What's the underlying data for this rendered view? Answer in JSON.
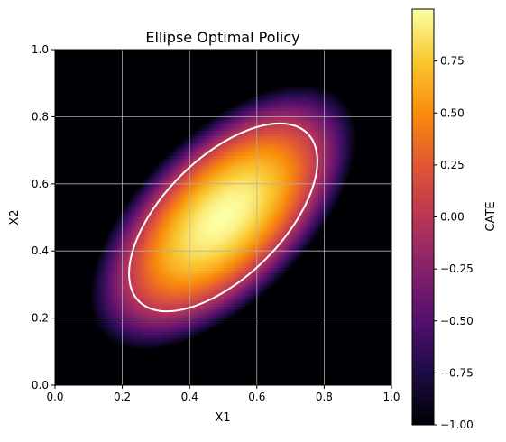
{
  "chart_data": {
    "type": "heatmap",
    "title": "Ellipse Optimal Policy",
    "xlabel": "X1",
    "ylabel": "X2",
    "xlim": [
      0.0,
      1.0
    ],
    "ylim": [
      0.0,
      1.0
    ],
    "xticks": [
      0.0,
      0.2,
      0.4,
      0.6,
      0.8,
      1.0
    ],
    "xtick_labels": [
      "0.0",
      "0.2",
      "0.4",
      "0.6",
      "0.8",
      "1.0"
    ],
    "yticks": [
      0.0,
      0.2,
      0.4,
      0.6,
      0.8,
      1.0
    ],
    "ytick_labels": [
      "0.0",
      "0.2",
      "0.4",
      "0.6",
      "0.8",
      "1.0"
    ],
    "grid": true,
    "colormap": "inferno",
    "colorbar": {
      "label": "CATE",
      "range": [
        -1.0,
        1.0
      ],
      "ticks": [
        -1.0,
        -0.75,
        -0.5,
        -0.25,
        0.0,
        0.25,
        0.5,
        0.75
      ],
      "tick_labels": [
        "−1.00",
        "−0.75",
        "−0.50",
        "−0.25",
        "0.00",
        "0.25",
        "0.50",
        "0.75"
      ]
    },
    "field": {
      "center": [
        0.5,
        0.5
      ],
      "peak_value": 1.0,
      "min_value": -1.0,
      "angle_deg": 45,
      "semi_axis_major": 0.5,
      "semi_axis_minor": 0.25
    },
    "ellipse_boundary": {
      "center": [
        0.5,
        0.5
      ],
      "angle_deg": 45,
      "semi_axis_major": 0.354,
      "semi_axis_minor": 0.177,
      "color": "#ffffff"
    }
  }
}
